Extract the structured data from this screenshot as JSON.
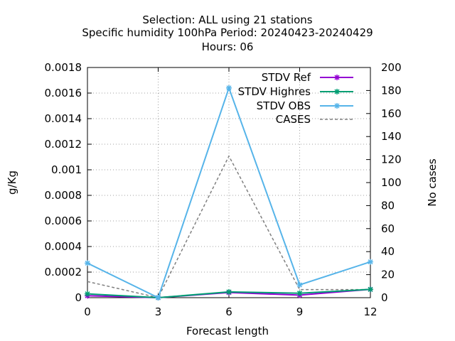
{
  "chart_data": {
    "type": "line",
    "title_lines": [
      "Selection: ALL using    21 stations",
      "Specific humidity 100hPa   Period: 20240423-20240429",
      "Hours:  06"
    ],
    "xlabel": "Forecast length",
    "ylabel": "g/Kg",
    "y2label": "No cases",
    "x": [
      0,
      3,
      6,
      9,
      12
    ],
    "x_ticks": [
      "0",
      "3",
      "6",
      "9",
      "12"
    ],
    "xlim": [
      0,
      12
    ],
    "ylim": [
      0,
      0.0018
    ],
    "y_ticks": [
      "0",
      "0.0002",
      "0.0004",
      "0.0006",
      "0.0008",
      "0.001",
      "0.0012",
      "0.0014",
      "0.0016",
      "0.0018"
    ],
    "y2lim": [
      0,
      200
    ],
    "y2_ticks": [
      "0",
      "20",
      "40",
      "60",
      "80",
      "100",
      "120",
      "140",
      "160",
      "180",
      "200"
    ],
    "grid": true,
    "legend_position": "top-right",
    "series": [
      {
        "name": "STDV Ref",
        "axis": "y",
        "color": "#9400d3",
        "style": "solid-star",
        "values": [
          1.5e-05,
          0.0,
          4e-05,
          2e-05,
          6.5e-05
        ]
      },
      {
        "name": "STDV Highres",
        "axis": "y",
        "color": "#009e73",
        "style": "solid-star",
        "values": [
          3e-05,
          0.0,
          4.5e-05,
          3.5e-05,
          6.5e-05
        ]
      },
      {
        "name": "STDV OBS",
        "axis": "y",
        "color": "#56b4e9",
        "style": "solid-star",
        "values": [
          0.00027,
          0.0,
          0.00164,
          0.0001,
          0.00028
        ]
      },
      {
        "name": "CASES",
        "axis": "y2",
        "color": "#808080",
        "style": "dashed",
        "values": [
          14,
          0,
          123,
          7,
          7
        ]
      }
    ]
  }
}
